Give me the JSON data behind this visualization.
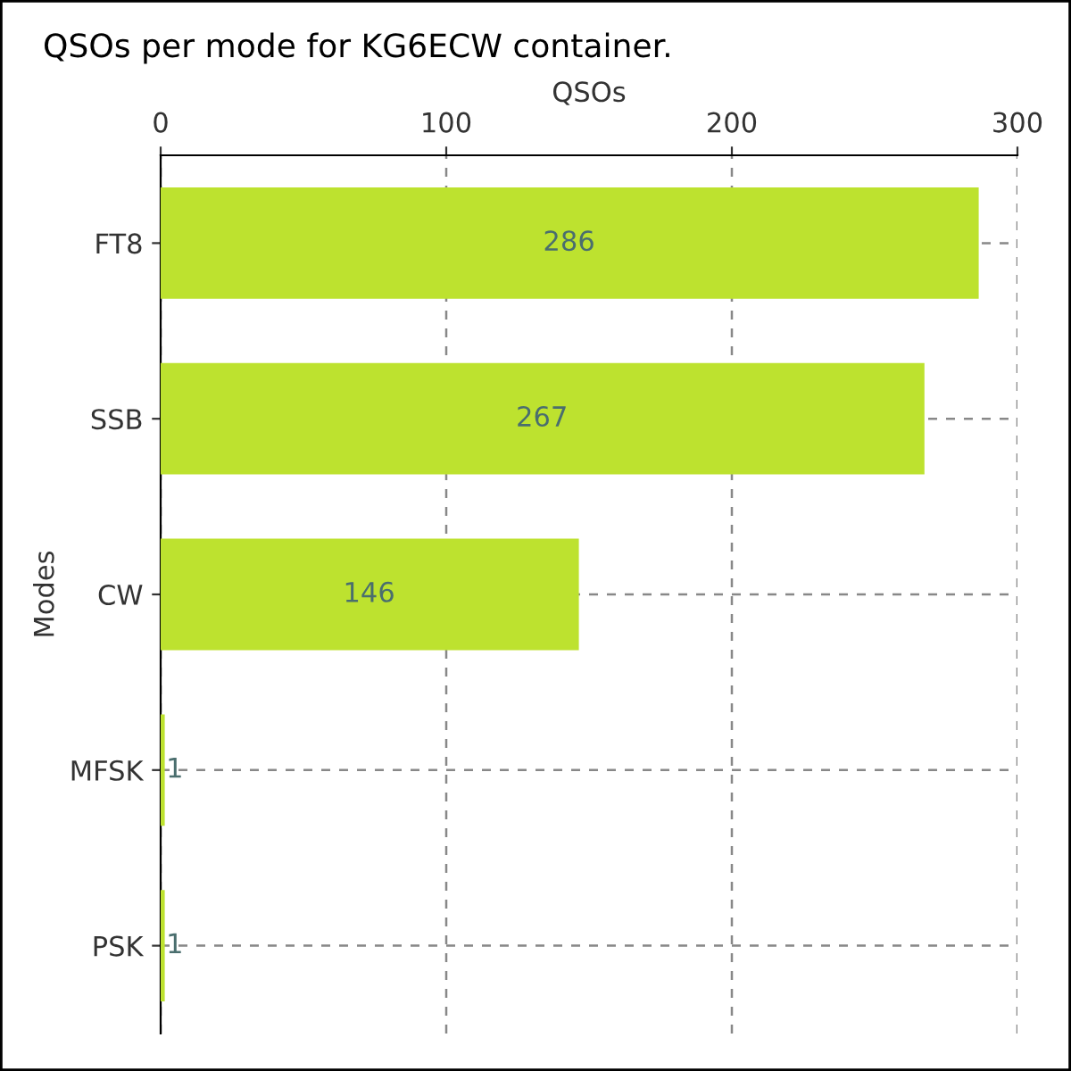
{
  "chart_data": {
    "type": "bar",
    "orientation": "horizontal",
    "title": "QSOs per mode for KG6ECW container.",
    "xlabel": "QSOs",
    "ylabel": "Modes",
    "categories": [
      "FT8",
      "SSB",
      "CW",
      "MFSK",
      "PSK"
    ],
    "values": [
      286,
      267,
      146,
      1,
      1
    ],
    "color": "#bde22f",
    "xlim": [
      0,
      300
    ],
    "xticks": [
      0,
      100,
      200,
      300
    ],
    "grid": true,
    "data_labels": true
  }
}
